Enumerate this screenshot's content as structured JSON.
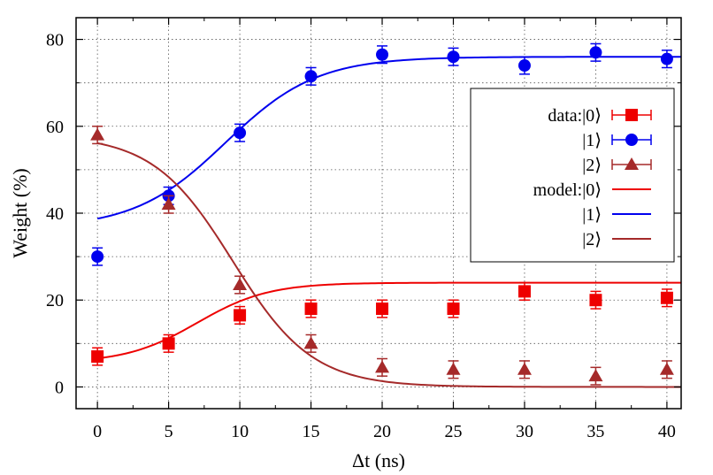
{
  "chart_data": {
    "type": "scatter",
    "xlabel": "Δt (ns)",
    "ylabel": "Weight (%)",
    "xlim": [
      -1.5,
      41
    ],
    "ylim": [
      -5,
      85
    ],
    "xticks": [
      0,
      5,
      10,
      15,
      20,
      25,
      30,
      35,
      40
    ],
    "yticks": [
      0,
      20,
      40,
      60,
      80
    ],
    "grid": true,
    "legend_position": "top-right",
    "x": [
      0,
      5,
      10,
      15,
      20,
      25,
      30,
      35,
      40
    ],
    "series": [
      {
        "name": "data:|0⟩",
        "kind": "data",
        "marker": "square",
        "color": "#ee0000",
        "values": [
          7,
          10,
          16.5,
          18,
          18,
          18,
          22,
          20,
          20.5
        ],
        "errors": [
          2,
          2,
          2,
          2,
          2,
          2,
          2,
          2,
          2
        ]
      },
      {
        "name": "|1⟩",
        "kind": "data",
        "marker": "circle",
        "color": "#0000ee",
        "values": [
          30,
          44,
          58.5,
          71.5,
          76.5,
          76,
          74,
          77,
          75.5
        ],
        "errors": [
          2,
          2,
          2,
          2,
          2,
          2,
          2,
          2,
          2
        ]
      },
      {
        "name": "|2⟩",
        "kind": "data",
        "marker": "triangle",
        "color": "#a52a2a",
        "values": [
          58,
          42,
          23.5,
          10,
          4.5,
          4,
          4,
          2.5,
          4
        ],
        "errors": [
          2,
          2,
          2,
          2,
          2,
          2,
          2,
          2,
          2
        ]
      },
      {
        "name": "model:|0⟩",
        "kind": "model",
        "color": "#ee0000",
        "model": {
          "start": 5.5,
          "end": 24,
          "center": 7,
          "width": 2.5
        }
      },
      {
        "name": "|1⟩",
        "kind": "model",
        "color": "#0000ee",
        "model": {
          "start": 36.5,
          "end": 76,
          "center": 9,
          "width": 3.2
        }
      },
      {
        "name": "|2⟩",
        "kind": "model",
        "color": "#a52a2a",
        "model": {
          "start": 58,
          "end": 0,
          "center": 9.5,
          "width": 2.8
        }
      }
    ]
  }
}
